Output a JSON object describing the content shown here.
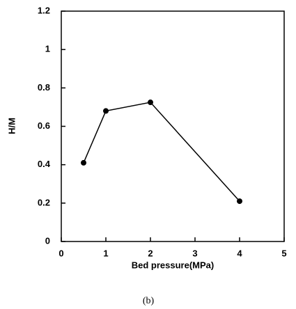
{
  "chart_data": {
    "type": "line",
    "x_label": "Bed pressure(MPa)",
    "y_label": "H/M",
    "caption": "(b)",
    "x": [
      0.5,
      1,
      2,
      4
    ],
    "series": [
      {
        "name": "H/M",
        "color": "#000000",
        "values": [
          0.41,
          0.68,
          0.725,
          0.21
        ]
      }
    ],
    "xlim": [
      0,
      5
    ],
    "xticks": [
      0,
      1,
      2,
      3,
      4,
      5
    ],
    "ylim": [
      0,
      1.2
    ],
    "yticks": [
      0,
      0.2,
      0.4,
      0.6,
      0.8,
      1,
      1.2
    ],
    "grid": false
  }
}
